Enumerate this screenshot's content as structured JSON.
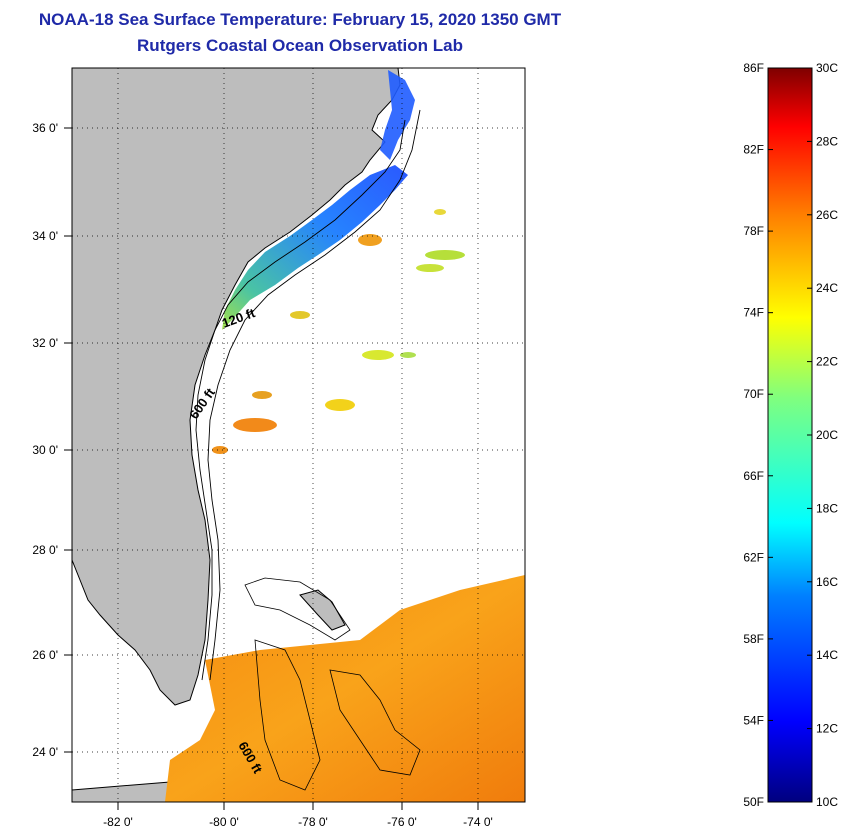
{
  "title_line1": "NOAA-18 Sea Surface Temperature:  February 15, 2020 1350 GMT",
  "title_line2": "Rutgers Coastal Ocean Observation Lab",
  "map": {
    "lon_labels": [
      "-82 0'",
      "-80 0'",
      "-78 0'",
      "-76 0'",
      "-74 0'"
    ],
    "lat_labels": [
      "36 0'",
      "34 0'",
      "32 0'",
      "30 0'",
      "28 0'",
      "26 0'",
      "24 0'"
    ],
    "contour_labels": [
      "120 ft",
      "600 ft",
      "600 ft"
    ],
    "colors": {
      "land": "#bdbdbd",
      "ocean": "#ffffff",
      "coastline": "#000000"
    }
  },
  "colorbar": {
    "fahrenheit_labels": [
      "86F",
      "82F",
      "78F",
      "74F",
      "70F",
      "66F",
      "62F",
      "58F",
      "54F",
      "50F"
    ],
    "celsius_labels": [
      "30C",
      "28C",
      "26C",
      "24C",
      "22C",
      "20C",
      "18C",
      "16C",
      "14C",
      "12C",
      "10C"
    ],
    "range_f": [
      50,
      86
    ],
    "range_c": [
      10,
      30
    ],
    "colors": [
      "#00007f",
      "#0000ff",
      "#007fff",
      "#00ffff",
      "#7fff7f",
      "#ffff00",
      "#ff7f00",
      "#ff0000",
      "#7f0000"
    ]
  }
}
